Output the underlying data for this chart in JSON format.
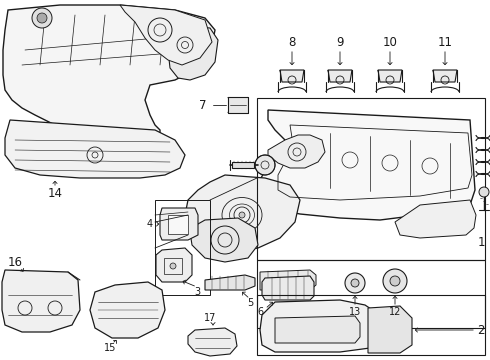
{
  "bg_color": "#ffffff",
  "line_color": "#1a1a1a",
  "fig_width": 4.9,
  "fig_height": 3.6,
  "dpi": 100,
  "label_fontsize": 8.5,
  "small_fontsize": 7.0
}
